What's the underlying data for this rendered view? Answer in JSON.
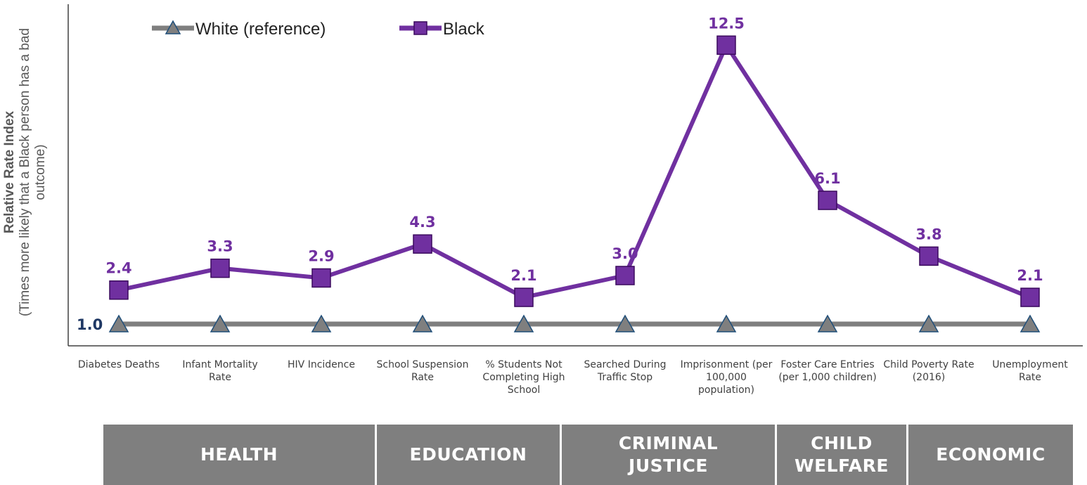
{
  "chart_data": {
    "type": "line",
    "ylabel": "Relative Rate Index",
    "ylabel_sub": "(Times more likely that a Black person has a bad outcome)",
    "categories": [
      "Diabetes Deaths",
      "Infant Mortality Rate",
      "HIV Incidence",
      "School Suspension Rate",
      "% Students Not Completing High School",
      "Searched During Traffic Stop",
      "Imprisonment (per 100,000 population)",
      "Foster Care Entries (per 1,000 children)",
      "Child Poverty Rate (2016)",
      "Unemployment Rate"
    ],
    "series": [
      {
        "name": "White (reference)",
        "values": [
          1.0,
          1.0,
          1.0,
          1.0,
          1.0,
          1.0,
          1.0,
          1.0,
          1.0,
          1.0
        ],
        "color": "#7f7f7f",
        "marker": "triangle",
        "marker_color": "#7f7f7f",
        "marker_edge": "#1f4e79"
      },
      {
        "name": "Black",
        "values": [
          2.4,
          3.3,
          2.9,
          4.3,
          2.1,
          3.0,
          12.5,
          6.1,
          3.8,
          2.1
        ],
        "color": "#7030a0",
        "marker": "square",
        "marker_color": "#7030a0",
        "marker_edge": "#3b0a5e"
      }
    ],
    "data_labels": {
      "black": [
        "2.4",
        "3.3",
        "2.9",
        "4.3",
        "2.1",
        "3.0",
        "12.5",
        "6.1",
        "3.8",
        "2.1"
      ],
      "white_first": "1.0"
    },
    "grid": false,
    "legend_position": "top-left"
  },
  "domains": [
    {
      "label": "HEALTH"
    },
    {
      "label": "EDUCATION"
    },
    {
      "label": "CRIMINAL\nJUSTICE"
    },
    {
      "label": "CHILD\nWELFARE"
    },
    {
      "label": "ECONOMIC"
    }
  ]
}
